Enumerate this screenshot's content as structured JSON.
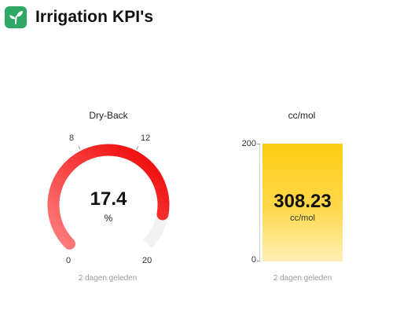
{
  "header": {
    "title": "Irrigation KPI's",
    "icon": "seedling-icon",
    "icon_color": "#2fa866"
  },
  "dryback": {
    "title": "Dry-Back",
    "value": "17.4",
    "unit": "%",
    "value_number": 17.4,
    "min": 0,
    "max": 20,
    "min_label": "0",
    "max_label": "20",
    "ticks": [
      "8",
      "12"
    ],
    "tick_values": [
      8,
      12
    ],
    "updated": "2 dagen geleden",
    "colors": {
      "fill_start": "#ff8080",
      "fill_end": "#ee0000",
      "track": "#f2f2f2"
    }
  },
  "ccmol": {
    "title": "cc/mol",
    "value": "308.23",
    "unit": "cc/mol",
    "axis_max_label": "200",
    "axis_min_label": "0",
    "updated": "2 dagen geleden",
    "colors": {
      "top": "#ffcc12",
      "bottom": "#fff0b8"
    }
  }
}
